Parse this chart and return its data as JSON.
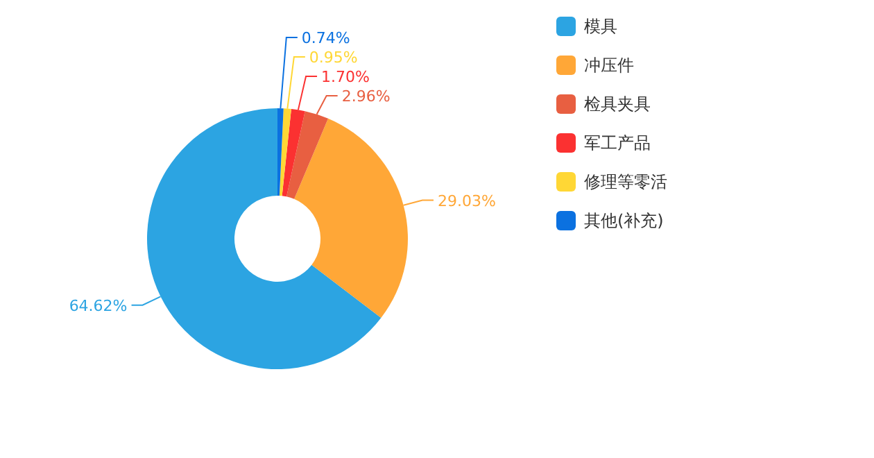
{
  "chart_data": {
    "type": "donut",
    "categories": [
      "模具",
      "冲压件",
      "检具夹具",
      "军工产品",
      "修理等零活",
      "其他(补充)"
    ],
    "values": [
      64.62,
      29.03,
      2.96,
      1.7,
      0.95,
      0.74
    ],
    "colors": [
      "#2ca4e2",
      "#ffa737",
      "#e85f41",
      "#fb3131",
      "#ffd735",
      "#0b71e0"
    ],
    "value_labels": [
      "64.62%",
      "29.03%",
      "2.96%",
      "1.70%",
      "0.95%",
      "0.74%"
    ],
    "legend": "right"
  }
}
